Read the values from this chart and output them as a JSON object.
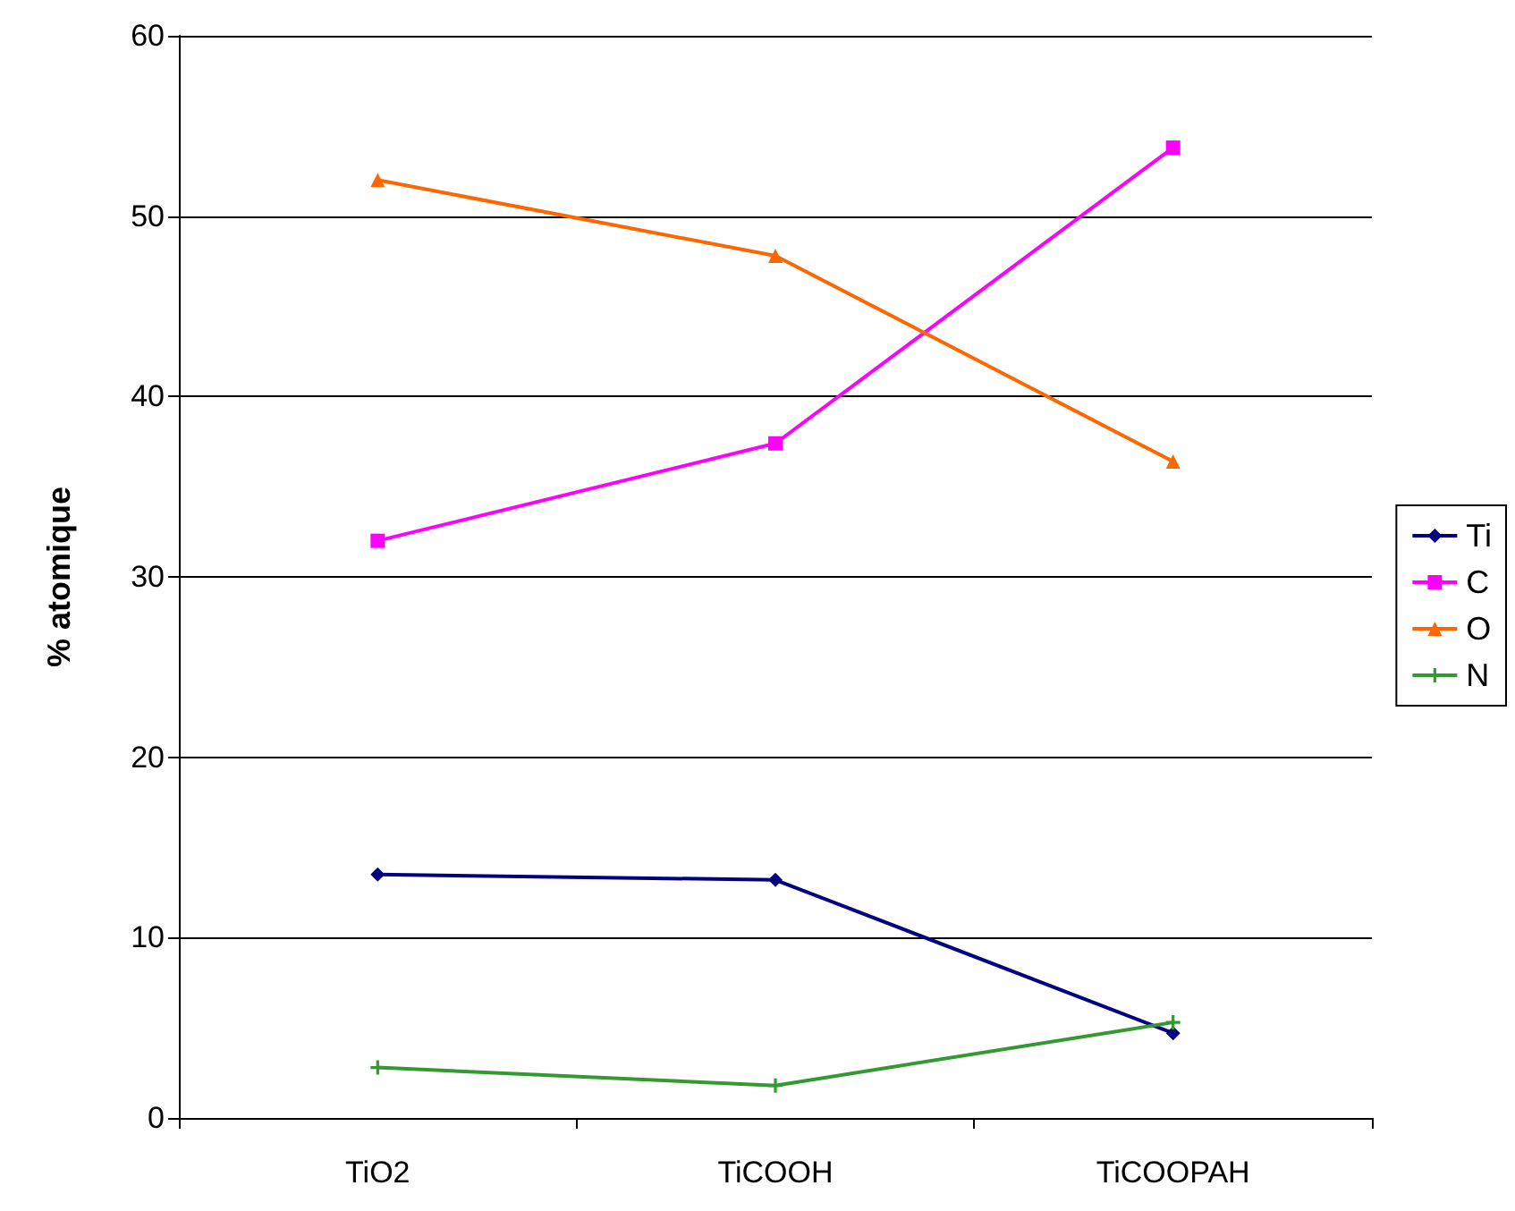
{
  "chart_data": {
    "type": "line",
    "ylabel": "% atomique",
    "categories": [
      "TiO2",
      "TiCOOH",
      "TiCOOPAH"
    ],
    "series": [
      {
        "name": "Ti",
        "color": "#000080",
        "marker": "diamond",
        "values": [
          13.5,
          13.2,
          4.7
        ]
      },
      {
        "name": "C",
        "color": "#ff00ff",
        "marker": "square",
        "values": [
          32.0,
          37.4,
          53.8
        ]
      },
      {
        "name": "O",
        "color": "#ff6600",
        "marker": "triangle",
        "values": [
          52.0,
          47.8,
          36.4
        ]
      },
      {
        "name": "N",
        "color": "#339933",
        "marker": "cross",
        "values": [
          2.8,
          1.8,
          5.3
        ]
      }
    ],
    "ylim": [
      0,
      60
    ],
    "yticks": [
      0,
      10,
      20,
      30,
      40,
      50,
      60
    ],
    "grid": "y",
    "legend": "right"
  }
}
